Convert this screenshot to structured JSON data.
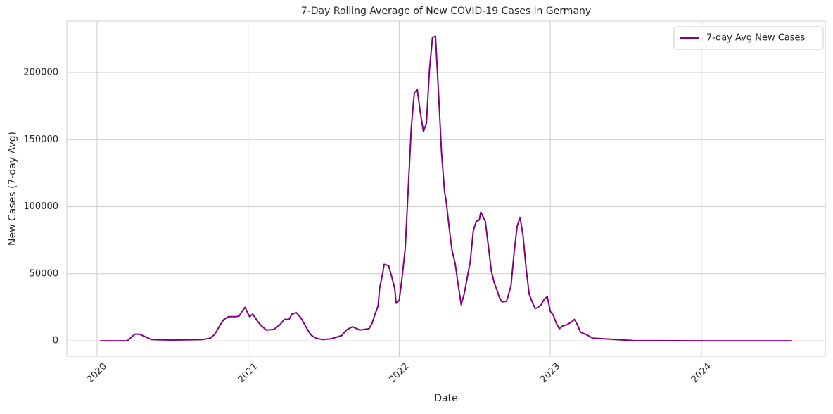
{
  "chart_data": {
    "type": "line",
    "title": "7-Day Rolling Average of New COVID-19 Cases in Germany",
    "x_label": "Date",
    "y_label": "New Cases (7-day Avg)",
    "x": [
      2020.02,
      2020.2,
      2020.25,
      2020.28,
      2020.36,
      2020.5,
      2020.7,
      2020.75,
      2020.78,
      2020.81,
      2020.84,
      2020.87,
      2020.92,
      2020.94,
      2020.96,
      2020.98,
      2021.0,
      2021.01,
      2021.03,
      2021.06,
      2021.08,
      2021.12,
      2021.17,
      2021.21,
      2021.24,
      2021.27,
      2021.29,
      2021.32,
      2021.35,
      2021.37,
      2021.4,
      2021.42,
      2021.45,
      2021.49,
      2021.55,
      2021.62,
      2021.65,
      2021.69,
      2021.72,
      2021.74,
      2021.8,
      2021.82,
      2021.84,
      2021.86,
      2021.87,
      2021.89,
      2021.9,
      2021.93,
      2021.95,
      2021.97,
      2021.98,
      2022.0,
      2022.02,
      2022.04,
      2022.06,
      2022.08,
      2022.1,
      2022.12,
      2022.14,
      2022.16,
      2022.18,
      2022.2,
      2022.22,
      2022.24,
      2022.26,
      2022.28,
      2022.3,
      2022.31,
      2022.33,
      2022.35,
      2022.37,
      2022.39,
      2022.41,
      2022.43,
      2022.45,
      2022.47,
      2022.49,
      2022.51,
      2022.53,
      2022.54,
      2022.57,
      2022.59,
      2022.61,
      2022.63,
      2022.65,
      2022.66,
      2022.68,
      2022.71,
      2022.72,
      2022.74,
      2022.76,
      2022.78,
      2022.8,
      2022.82,
      2022.84,
      2022.86,
      2022.88,
      2022.9,
      2022.92,
      2022.94,
      2022.96,
      2022.98,
      2023.0,
      2023.02,
      2023.04,
      2023.06,
      2023.08,
      2023.11,
      2023.14,
      2023.16,
      2023.18,
      2023.2,
      2023.22,
      2023.25,
      2023.28,
      2023.36,
      2023.46,
      2023.55,
      2024.0,
      2024.6
    ],
    "series": [
      {
        "name": "7-day Avg New Cases",
        "color": "#800080",
        "values": [
          0,
          0,
          5000,
          5000,
          1000,
          500,
          1000,
          2000,
          5000,
          11000,
          16000,
          18000,
          18000,
          18500,
          22000,
          25000,
          20000,
          18000,
          20000,
          15000,
          12000,
          8000,
          8500,
          12000,
          16000,
          16000,
          20000,
          21000,
          17000,
          13000,
          7000,
          4000,
          2000,
          1000,
          1500,
          4000,
          8000,
          10500,
          9000,
          8000,
          9000,
          13000,
          20000,
          26000,
          39000,
          50000,
          57000,
          56000,
          48000,
          39000,
          28000,
          30000,
          48000,
          69000,
          114000,
          159000,
          185000,
          187000,
          170000,
          156000,
          162000,
          202000,
          226000,
          227000,
          185000,
          140000,
          111000,
          105000,
          85000,
          67000,
          58000,
          42000,
          27000,
          35000,
          47000,
          59000,
          82000,
          89000,
          90000,
          96000,
          89000,
          71000,
          52000,
          43000,
          37000,
          33000,
          29000,
          29500,
          33000,
          41000,
          65000,
          85000,
          92000,
          78000,
          54000,
          35000,
          29000,
          24000,
          25000,
          27000,
          31000,
          33000,
          22000,
          19000,
          13000,
          9000,
          11000,
          12000,
          14000,
          16000,
          12000,
          6500,
          5500,
          4000,
          2000,
          1500,
          800,
          200,
          0,
          0
        ]
      }
    ],
    "xlim": [
      2019.8,
      2024.82
    ],
    "xticks": [
      2020,
      2021,
      2022,
      2023,
      2024
    ],
    "ylim": [
      -11500,
      238300
    ],
    "yticks": [
      0,
      50000,
      100000,
      150000,
      200000
    ],
    "grid": true,
    "legend": "upper right"
  }
}
